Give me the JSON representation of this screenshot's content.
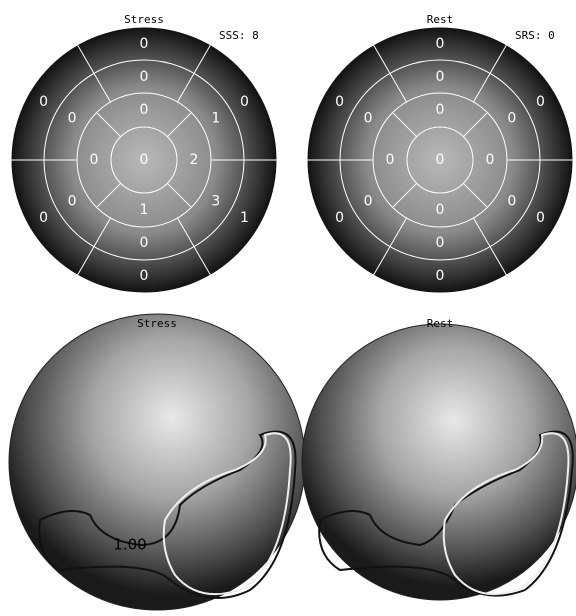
{
  "polar_maps": [
    {
      "title": "Stress",
      "score_label": "SSS: 8",
      "basal": [
        0,
        0,
        0,
        0,
        1,
        0
      ],
      "mid": [
        0,
        0,
        0,
        0,
        3,
        1
      ],
      "apical": [
        0,
        0,
        1,
        2
      ],
      "apex": 0
    },
    {
      "title": "Rest",
      "score_label": "SRS: 0",
      "basal": [
        0,
        0,
        0,
        0,
        0,
        0
      ],
      "mid": [
        0,
        0,
        0,
        0,
        0,
        0
      ],
      "apical": [
        0,
        0,
        0,
        0
      ],
      "apex": 0
    }
  ],
  "surface_maps": [
    {
      "title": "Stress",
      "contour_label": "1.00"
    },
    {
      "title": "Rest"
    }
  ]
}
